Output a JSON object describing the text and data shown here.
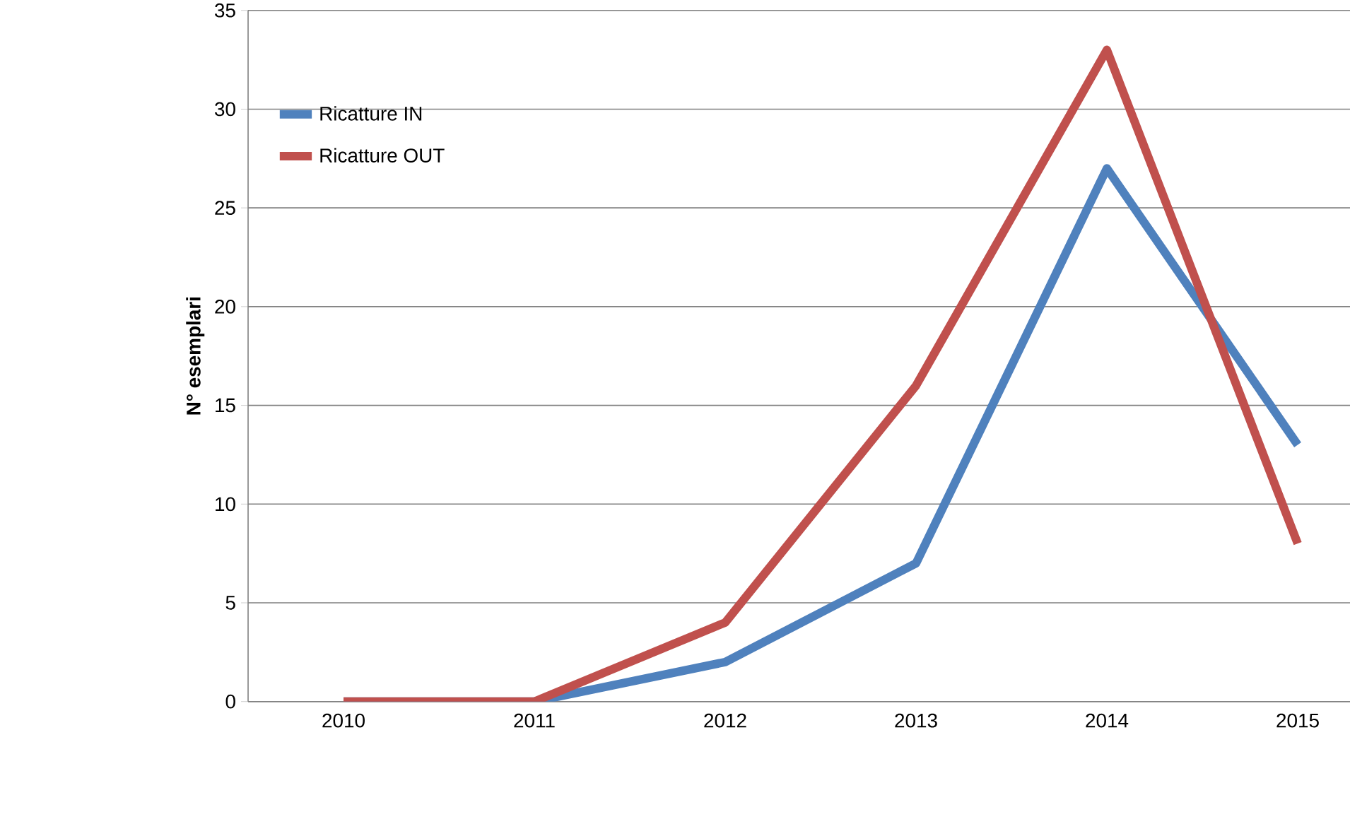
{
  "chart_data": {
    "type": "line",
    "ylabel": "N° esemplari",
    "categories": [
      "2010",
      "2011",
      "2012",
      "2013",
      "2014",
      "2015"
    ],
    "series": [
      {
        "name": "Ricatture IN",
        "color": "#4f81bd",
        "values": [
          0,
          0,
          2,
          7,
          27,
          13
        ]
      },
      {
        "name": "Ricatture OUT",
        "color": "#c0504d",
        "values": [
          0,
          0,
          4,
          16,
          33,
          8
        ]
      }
    ],
    "ylim": [
      0,
      35
    ],
    "yticks": [
      0,
      5,
      10,
      15,
      20,
      25,
      30,
      35
    ],
    "grid": "y",
    "legend": "top left",
    "marker": "none",
    "line_style": "solid"
  }
}
